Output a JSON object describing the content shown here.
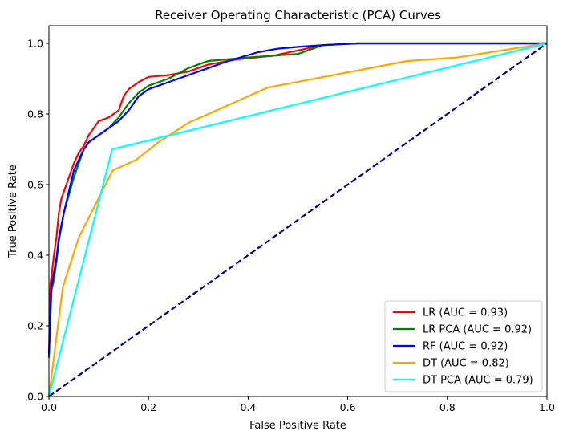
{
  "chart_data": {
    "type": "line",
    "title": "Receiver Operating Characteristic (PCA) Curves",
    "xlabel": "False Positive Rate",
    "ylabel": "True Positive Rate",
    "xlim": [
      0.0,
      1.0
    ],
    "ylim": [
      0.0,
      1.05
    ],
    "xticks": [
      "0.0",
      "0.2",
      "0.4",
      "0.6",
      "0.8",
      "1.0"
    ],
    "yticks": [
      "0.0",
      "0.2",
      "0.4",
      "0.6",
      "0.8",
      "1.0"
    ],
    "grid": false,
    "legend_position": "bottom-right",
    "series": [
      {
        "name": "LR (AUC = 0.93)",
        "color": "#ff0000",
        "style": "solid",
        "x": [
          0,
          0.003,
          0.006,
          0.01,
          0.015,
          0.02,
          0.025,
          0.03,
          0.04,
          0.05,
          0.06,
          0.07,
          0.08,
          0.09,
          0.1,
          0.12,
          0.14,
          0.15,
          0.16,
          0.18,
          0.2,
          0.24,
          0.28,
          0.32,
          0.38,
          0.45,
          0.55,
          0.62,
          1.0
        ],
        "y": [
          0.12,
          0.32,
          0.35,
          0.4,
          0.45,
          0.52,
          0.56,
          0.58,
          0.62,
          0.66,
          0.69,
          0.71,
          0.74,
          0.76,
          0.78,
          0.79,
          0.81,
          0.85,
          0.87,
          0.89,
          0.905,
          0.91,
          0.92,
          0.94,
          0.955,
          0.965,
          0.995,
          1.0,
          1.0
        ]
      },
      {
        "name": "LR PCA (AUC = 0.92)",
        "color": "#008000",
        "style": "solid",
        "x": [
          0,
          0.005,
          0.01,
          0.015,
          0.02,
          0.03,
          0.04,
          0.05,
          0.06,
          0.07,
          0.08,
          0.1,
          0.12,
          0.14,
          0.16,
          0.18,
          0.2,
          0.24,
          0.28,
          0.32,
          0.4,
          0.5,
          0.55,
          0.62,
          1.0
        ],
        "y": [
          0.11,
          0.3,
          0.33,
          0.38,
          0.44,
          0.52,
          0.57,
          0.62,
          0.66,
          0.7,
          0.72,
          0.74,
          0.76,
          0.79,
          0.83,
          0.86,
          0.88,
          0.9,
          0.93,
          0.95,
          0.96,
          0.97,
          0.995,
          1.0,
          1.0
        ]
      },
      {
        "name": "RF (AUC = 0.92)",
        "color": "#0000ff",
        "style": "solid",
        "x": [
          0,
          0.005,
          0.01,
          0.015,
          0.02,
          0.03,
          0.04,
          0.05,
          0.06,
          0.07,
          0.08,
          0.1,
          0.12,
          0.14,
          0.16,
          0.18,
          0.2,
          0.24,
          0.28,
          0.32,
          0.36,
          0.42,
          0.46,
          0.5,
          0.55,
          0.62,
          1.0
        ],
        "y": [
          0.12,
          0.31,
          0.35,
          0.39,
          0.45,
          0.52,
          0.58,
          0.64,
          0.67,
          0.7,
          0.72,
          0.74,
          0.76,
          0.78,
          0.81,
          0.85,
          0.87,
          0.89,
          0.91,
          0.93,
          0.95,
          0.975,
          0.985,
          0.99,
          0.995,
          1.0,
          1.0
        ]
      },
      {
        "name": "DT (AUC = 0.82)",
        "color": "#ffa500",
        "style": "solid",
        "x": [
          0,
          0.028,
          0.06,
          0.128,
          0.175,
          0.22,
          0.28,
          0.44,
          0.72,
          0.82,
          1.0
        ],
        "y": [
          0,
          0.31,
          0.45,
          0.64,
          0.67,
          0.72,
          0.775,
          0.875,
          0.95,
          0.96,
          1.0
        ]
      },
      {
        "name": "DT PCA (AUC = 0.79)",
        "color": "#00ffff",
        "style": "solid",
        "x": [
          0,
          0.127,
          1.0
        ],
        "y": [
          0,
          0.7,
          1.0
        ]
      },
      {
        "name": "",
        "color": "#000080",
        "style": "dashed",
        "x": [
          0,
          1.0
        ],
        "y": [
          0,
          1.0
        ]
      }
    ]
  }
}
